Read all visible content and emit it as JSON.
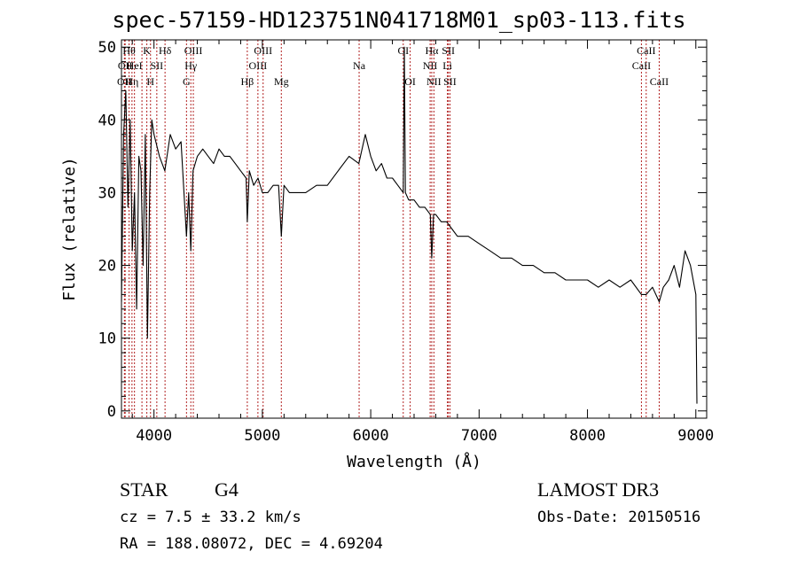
{
  "chart_data": {
    "type": "line",
    "title": "spec-57159-HD123751N041718M01_sp03-113.fits",
    "xlabel": "Wavelength (Å)",
    "ylabel": "Flux (relative)",
    "xlim": [
      3700,
      9100
    ],
    "ylim": [
      -1,
      51
    ],
    "xticks": [
      4000,
      5000,
      6000,
      7000,
      8000,
      9000
    ],
    "xtick_labels": [
      "4000",
      "5000",
      "6000",
      "7000",
      "8000",
      "9000"
    ],
    "yticks": [
      0,
      10,
      20,
      30,
      40,
      50
    ],
    "ytick_labels": [
      "0",
      "10",
      "20",
      "30",
      "40",
      "50"
    ],
    "grid": false,
    "series": [
      {
        "name": "flux",
        "color": "#000000",
        "x": [
          3700,
          3720,
          3740,
          3760,
          3780,
          3800,
          3820,
          3840,
          3860,
          3880,
          3900,
          3920,
          3940,
          3960,
          3980,
          4000,
          4050,
          4100,
          4150,
          4200,
          4250,
          4300,
          4320,
          4340,
          4360,
          4400,
          4450,
          4500,
          4550,
          4600,
          4650,
          4700,
          4750,
          4800,
          4850,
          4861,
          4880,
          4920,
          4960,
          5000,
          5050,
          5100,
          5150,
          5175,
          5200,
          5250,
          5300,
          5400,
          5500,
          5600,
          5700,
          5800,
          5890,
          5950,
          6000,
          6050,
          6100,
          6150,
          6200,
          6250,
          6300,
          6310,
          6320,
          6350,
          6400,
          6450,
          6500,
          6550,
          6563,
          6580,
          6600,
          6650,
          6700,
          6750,
          6800,
          6900,
          7000,
          7100,
          7200,
          7300,
          7400,
          7500,
          7600,
          7700,
          7800,
          7900,
          8000,
          8100,
          8200,
          8300,
          8400,
          8498,
          8542,
          8600,
          8662,
          8700,
          8750,
          8800,
          8850,
          8900,
          8950,
          9000,
          9010
        ],
        "y": [
          15,
          38,
          44,
          28,
          40,
          22,
          30,
          14,
          35,
          33,
          20,
          38,
          10,
          30,
          40,
          38,
          35,
          33,
          38,
          36,
          37,
          24,
          30,
          22,
          33,
          35,
          36,
          35,
          34,
          36,
          35,
          35,
          34,
          33,
          32,
          26,
          33,
          31,
          32,
          30,
          30,
          31,
          31,
          24,
          31,
          30,
          30,
          30,
          31,
          31,
          33,
          35,
          34,
          38,
          35,
          33,
          34,
          32,
          32,
          31,
          30,
          50,
          30,
          29,
          29,
          28,
          28,
          27,
          21,
          27,
          27,
          26,
          26,
          25,
          24,
          24,
          23,
          22,
          21,
          21,
          20,
          20,
          19,
          19,
          18,
          18,
          18,
          17,
          18,
          17,
          18,
          16,
          16,
          17,
          15,
          17,
          18,
          20,
          17,
          22,
          20,
          16,
          1
        ]
      }
    ],
    "line_annotations": [
      {
        "wavelength": 3727,
        "label": "OII",
        "row": 2
      },
      {
        "wavelength": 3734,
        "label": "OII",
        "row": 1
      },
      {
        "wavelength": 3770,
        "label": "Hθ",
        "row": 0
      },
      {
        "wavelength": 3797,
        "label": "Hη",
        "row": 2
      },
      {
        "wavelength": 3820,
        "label": "HeI",
        "row": 1
      },
      {
        "wavelength": 3889,
        "label": "",
        "row": 1
      },
      {
        "wavelength": 3934,
        "label": "K",
        "row": 0
      },
      {
        "wavelength": 3968,
        "label": "H",
        "row": 2
      },
      {
        "wavelength": 4026,
        "label": "SII",
        "row": 1
      },
      {
        "wavelength": 4102,
        "label": "Hδ",
        "row": 0
      },
      {
        "wavelength": 4300,
        "label": "G",
        "row": 2
      },
      {
        "wavelength": 4340,
        "label": "Hγ",
        "row": 1
      },
      {
        "wavelength": 4363,
        "label": "OIII",
        "row": 0
      },
      {
        "wavelength": 4861,
        "label": "Hβ",
        "row": 2
      },
      {
        "wavelength": 4959,
        "label": "OIII",
        "row": 1
      },
      {
        "wavelength": 5007,
        "label": "OIII",
        "row": 0
      },
      {
        "wavelength": 5175,
        "label": "Mg",
        "row": 2
      },
      {
        "wavelength": 5893,
        "label": "Na",
        "row": 1
      },
      {
        "wavelength": 6300,
        "label": "OI",
        "row": 0
      },
      {
        "wavelength": 6364,
        "label": "OI",
        "row": 2
      },
      {
        "wavelength": 6548,
        "label": "NII",
        "row": 1
      },
      {
        "wavelength": 6563,
        "label": "Hα",
        "row": 0
      },
      {
        "wavelength": 6583,
        "label": "NII",
        "row": 2
      },
      {
        "wavelength": 6708,
        "label": "Li",
        "row": 1
      },
      {
        "wavelength": 6716,
        "label": "SII",
        "row": 0
      },
      {
        "wavelength": 6731,
        "label": "SII",
        "row": 2
      },
      {
        "wavelength": 8498,
        "label": "CaII",
        "row": 1
      },
      {
        "wavelength": 8542,
        "label": "CaII",
        "row": 0
      },
      {
        "wavelength": 8662,
        "label": "CaII",
        "row": 2
      }
    ]
  },
  "info": {
    "object_class": "STAR",
    "subclass": "G4",
    "survey": "LAMOST DR3",
    "redshift_text": "cz = 7.5 ± 33.2 km/s",
    "obs_date_text": "Obs-Date: 20150516",
    "coords_text": "RA = 188.08072, DEC =   4.69204"
  },
  "colors": {
    "line_marker": "#b22222",
    "spectrum": "#000000",
    "axis": "#000000"
  }
}
